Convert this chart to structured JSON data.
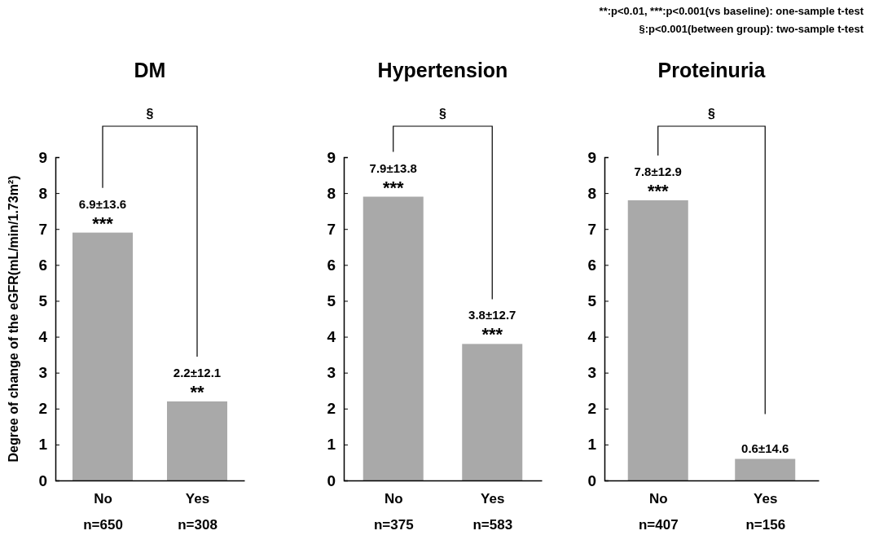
{
  "chart_data": [
    {
      "type": "bar",
      "title": "DM",
      "ylabel": "Degree of change of the eGFR(mL/min/1.73m²)",
      "categories": [
        "No\nn=650",
        "Yes\nn=308"
      ],
      "values": [
        6.9,
        2.2
      ],
      "color": "#a9a9a9",
      "value_labels": [
        "6.9±13.6",
        "2.2±12.1"
      ],
      "ylim": [
        0,
        9
      ],
      "yticks": [
        0,
        1,
        2,
        3,
        4,
        5,
        6,
        7,
        8,
        9
      ],
      "grid": false,
      "annotations": [
        "**:p<0.01, ***:p<0.001(vs baseline): one-sample t-test",
        "§:p<0.001(between group): two-sample t-test",
        "§",
        {
          "text": "***",
          "x": "No\nn=650",
          "y": 6.9
        },
        {
          "text": "**",
          "x": "Yes\nn=308",
          "y": 2.2
        }
      ]
    },
    {
      "type": "bar",
      "title": "Hypertension",
      "categories": [
        "No\nn=375",
        "Yes\nn=583"
      ],
      "values": [
        7.9,
        3.8
      ],
      "color": "#a9a9a9",
      "value_labels": [
        "7.9±13.8",
        "3.8±12.7"
      ],
      "ylim": [
        0,
        9
      ],
      "yticks": [
        0,
        1,
        2,
        3,
        4,
        5,
        6,
        7,
        8,
        9
      ],
      "grid": false,
      "annotations": [
        "§",
        {
          "text": "***",
          "x": "No\nn=375",
          "y": 7.9
        },
        {
          "text": "***",
          "x": "Yes\nn=583",
          "y": 3.8
        }
      ]
    },
    {
      "type": "bar",
      "title": "Proteinuria",
      "categories": [
        "No\nn=407",
        "Yes\nn=156"
      ],
      "values": [
        7.8,
        0.6
      ],
      "color": "#a9a9a9",
      "value_labels": [
        "7.8±12.9",
        "0.6±14.6"
      ],
      "ylim": [
        0,
        9
      ],
      "yticks": [
        0,
        1,
        2,
        3,
        4,
        5,
        6,
        7,
        8,
        9
      ],
      "grid": false,
      "annotations": [
        "§",
        {
          "text": "***",
          "x": "No\nn=407",
          "y": 7.8
        }
      ]
    }
  ]
}
